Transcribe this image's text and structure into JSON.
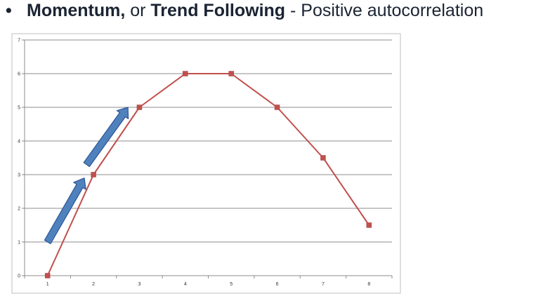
{
  "heading": {
    "bullet": "•",
    "term1": "Momentum,",
    "mid": " or ",
    "term2": "Trend Following",
    "rest": " - Positive autocorrelation"
  },
  "chart_data": {
    "type": "line",
    "title": "",
    "xlabel": "",
    "ylabel": "",
    "categories": [
      "1",
      "2",
      "3",
      "4",
      "5",
      "6",
      "7",
      "8"
    ],
    "series": [
      {
        "values": [
          0,
          3,
          5,
          6,
          6,
          5,
          3.5,
          1.5
        ],
        "color": "#c0504d",
        "marker": "square"
      }
    ],
    "ylim": [
      0,
      7
    ],
    "yticks": [
      "0",
      "1",
      "2",
      "3",
      "4",
      "5",
      "6",
      "7"
    ],
    "grid": "horizontal",
    "legend": "none",
    "annotations": [
      {
        "type": "arrow",
        "from": [
          1,
          1
        ],
        "to": [
          1.8,
          2.9
        ],
        "color": "#4f81bd"
      },
      {
        "type": "arrow",
        "from": [
          1.85,
          3.3
        ],
        "to": [
          2.75,
          5.0
        ],
        "color": "#4f81bd"
      }
    ]
  }
}
